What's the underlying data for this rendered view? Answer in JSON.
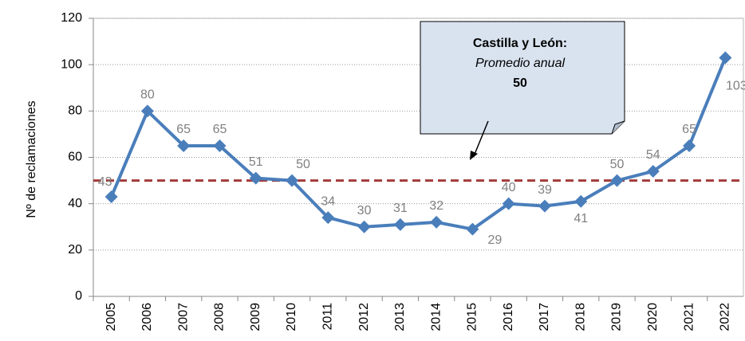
{
  "chart_data": {
    "type": "line",
    "y_axis_label": "Nº de reclamaciones",
    "categories": [
      "2005",
      "2006",
      "2007",
      "2008",
      "2009",
      "2010",
      "2011",
      "2012",
      "2013",
      "2014",
      "2015",
      "2016",
      "2017",
      "2018",
      "2019",
      "2020",
      "2021",
      "2022"
    ],
    "series": [
      {
        "name": "Reclamaciones",
        "color": "#4a7ebb",
        "values": [
          43,
          80,
          65,
          65,
          51,
          50,
          34,
          30,
          31,
          32,
          29,
          40,
          39,
          41,
          50,
          54,
          65,
          103
        ]
      }
    ],
    "ylim": [
      0,
      120
    ],
    "yticks": [
      0,
      20,
      40,
      60,
      80,
      100,
      120
    ],
    "grid": true,
    "reference_line": {
      "value": 50,
      "color": "#a33b3b"
    },
    "annotation": {
      "title": "Castilla y León:",
      "subtitle": "Promedio anual",
      "value": 50
    }
  }
}
